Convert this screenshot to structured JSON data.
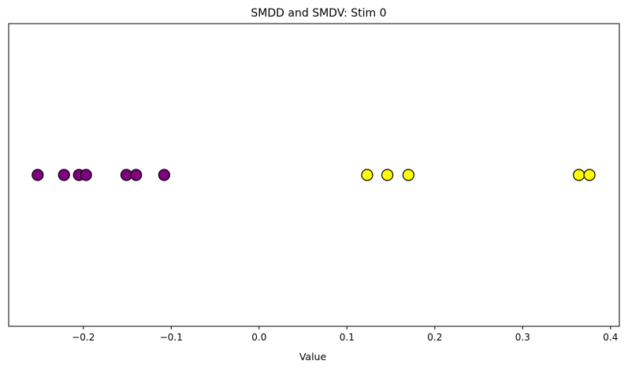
{
  "chart_data": {
    "type": "scatter",
    "title": "SMDD and SMDV: Stim 0",
    "xlabel": "Value",
    "ylabel": "",
    "xlim": [
      -0.285,
      0.41
    ],
    "ylim": [
      -1,
      1
    ],
    "x_ticks": [
      -0.2,
      -0.1,
      0.0,
      0.1,
      0.2,
      0.3,
      0.4
    ],
    "x_tick_labels": [
      "−0.2",
      "−0.1",
      "0.0",
      "0.1",
      "0.2",
      "0.3",
      "0.4"
    ],
    "y_ticks_shown": false,
    "grid": false,
    "legend": "none",
    "series": [
      {
        "color": "#800080",
        "marker_edge": "#000000",
        "x": [
          -0.252,
          -0.222,
          -0.205,
          -0.197,
          -0.151,
          -0.14,
          -0.108
        ],
        "y": [
          0,
          0,
          0,
          0,
          0,
          0,
          0
        ]
      },
      {
        "color": "#ffff00",
        "marker_edge": "#000000",
        "x": [
          0.123,
          0.146,
          0.17,
          0.364,
          0.376
        ],
        "y": [
          0,
          0,
          0,
          0,
          0
        ]
      }
    ]
  }
}
